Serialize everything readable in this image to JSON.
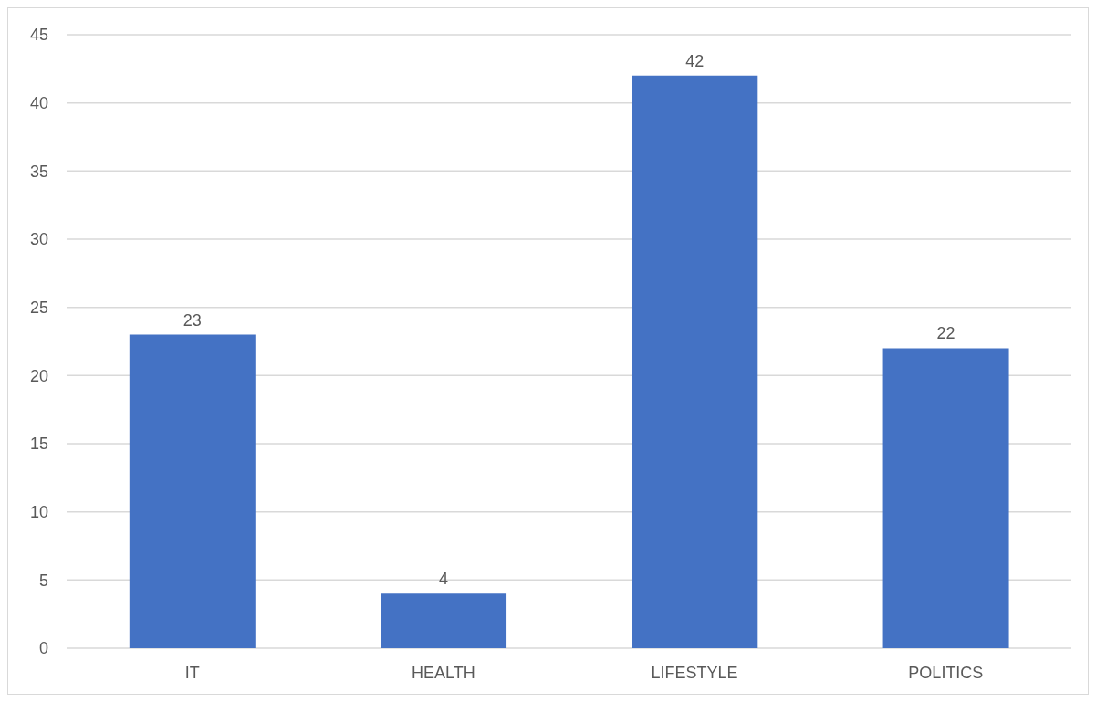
{
  "chart_data": {
    "type": "bar",
    "categories": [
      "IT",
      "HEALTH",
      "LIFESTYLE",
      "POLITICS"
    ],
    "values": [
      23,
      4,
      42,
      22
    ],
    "color": "#4472c4",
    "ylim": [
      0,
      45
    ],
    "yticks": [
      0,
      5,
      10,
      15,
      20,
      25,
      30,
      35,
      40,
      45
    ],
    "grid": "y",
    "data_labels": true
  }
}
